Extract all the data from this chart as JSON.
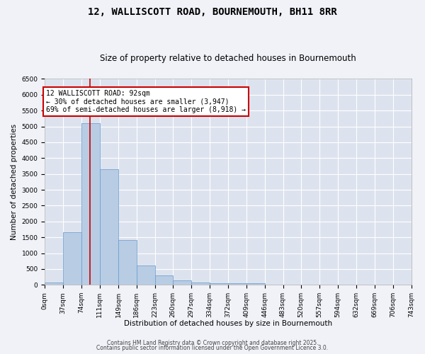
{
  "title": "12, WALLISCOTT ROAD, BOURNEMOUTH, BH11 8RR",
  "subtitle": "Size of property relative to detached houses in Bournemouth",
  "xlabel": "Distribution of detached houses by size in Bournemouth",
  "ylabel": "Number of detached properties",
  "background_color": "#dde3ee",
  "bar_color": "#b8cce4",
  "bar_edge_color": "#6699cc",
  "grid_color": "#ffffff",
  "bin_edges": [
    0,
    37,
    74,
    111,
    149,
    186,
    223,
    260,
    297,
    334,
    372,
    409,
    446,
    483,
    520,
    557,
    594,
    632,
    669,
    706,
    743
  ],
  "bin_labels": [
    "0sqm",
    "37sqm",
    "74sqm",
    "111sqm",
    "149sqm",
    "186sqm",
    "223sqm",
    "260sqm",
    "297sqm",
    "334sqm",
    "372sqm",
    "409sqm",
    "446sqm",
    "483sqm",
    "520sqm",
    "557sqm",
    "594sqm",
    "632sqm",
    "669sqm",
    "706sqm",
    "743sqm"
  ],
  "bar_heights": [
    75,
    1650,
    5100,
    3650,
    1420,
    600,
    300,
    130,
    75,
    50,
    50,
    50,
    0,
    0,
    0,
    0,
    0,
    0,
    0,
    0
  ],
  "property_size": 92,
  "red_line_color": "#cc0000",
  "annotation_line1": "12 WALLISCOTT ROAD: 92sqm",
  "annotation_line2": "← 30% of detached houses are smaller (3,947)",
  "annotation_line3": "69% of semi-detached houses are larger (8,918) →",
  "annotation_box_color": "#ffffff",
  "annotation_box_edge_color": "#cc0000",
  "ylim": [
    0,
    6500
  ],
  "yticks": [
    0,
    500,
    1000,
    1500,
    2000,
    2500,
    3000,
    3500,
    4000,
    4500,
    5000,
    5500,
    6000,
    6500
  ],
  "footer_line1": "Contains HM Land Registry data © Crown copyright and database right 2025.",
  "footer_line2": "Contains public sector information licensed under the Open Government Licence 3.0.",
  "fig_bg": "#f0f2f8",
  "title_fontsize": 10,
  "subtitle_fontsize": 8.5,
  "axis_label_fontsize": 7.5,
  "tick_fontsize": 6.5,
  "annotation_fontsize": 7,
  "footer_fontsize": 5.5
}
